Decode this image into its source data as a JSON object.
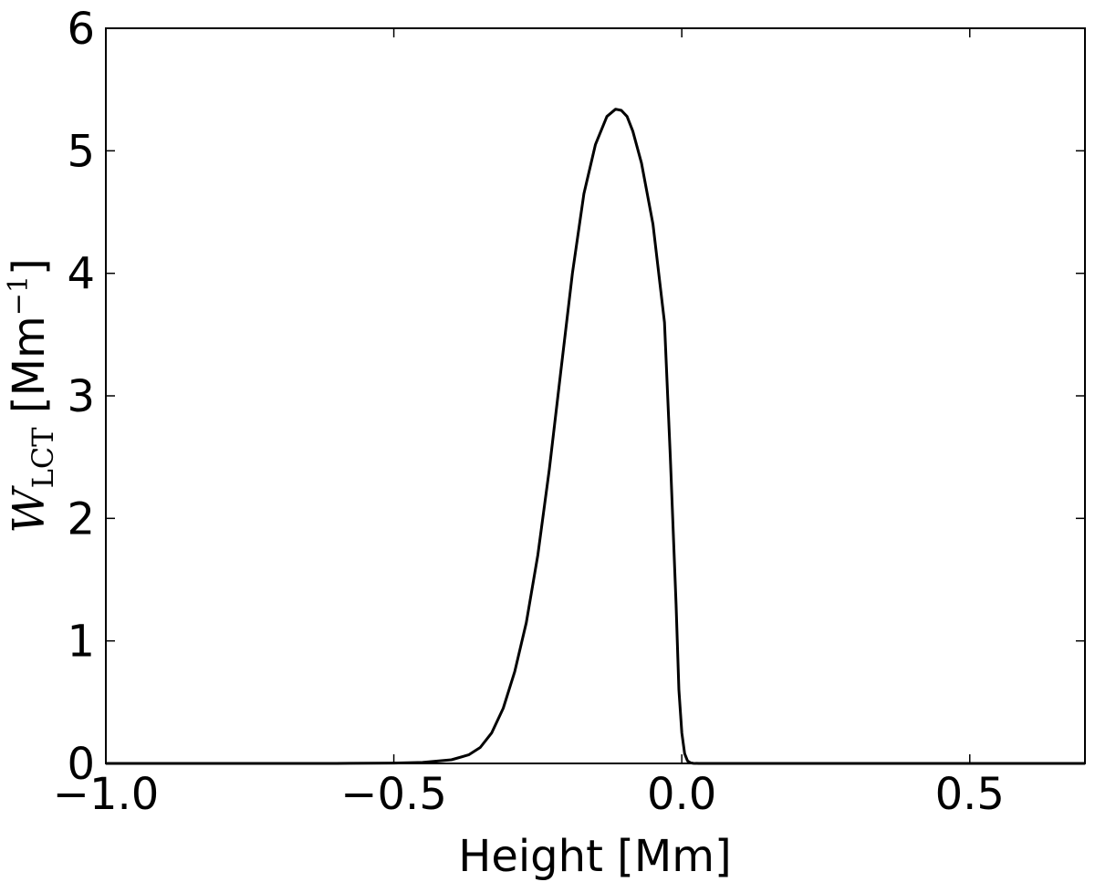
{
  "chart_data": {
    "type": "line",
    "title": "",
    "xlabel": "Height [Mm]",
    "ylabel": {
      "symbol": "W",
      "subscript": "LCT",
      "unit_prefix": " [Mm",
      "unit_exponent": "−1",
      "unit_suffix": "]"
    },
    "xlim": [
      -1.0,
      0.7
    ],
    "ylim": [
      0,
      6
    ],
    "x_ticks": [
      -1.0,
      -0.5,
      0.0,
      0.5
    ],
    "x_tick_labels": [
      "−1.0",
      "−0.5",
      "0.0",
      "0.5"
    ],
    "y_ticks": [
      0,
      1,
      2,
      3,
      4,
      5,
      6
    ],
    "y_tick_labels": [
      "0",
      "1",
      "2",
      "3",
      "4",
      "5",
      "6"
    ],
    "grid": false,
    "line_color": "#000000",
    "series": [
      {
        "x": [
          -1.0,
          -0.6,
          -0.5,
          -0.45,
          -0.4,
          -0.37,
          -0.35,
          -0.33,
          -0.31,
          -0.29,
          -0.27,
          -0.25,
          -0.23,
          -0.21,
          -0.19,
          -0.17,
          -0.15,
          -0.13,
          -0.115,
          -0.105,
          -0.095,
          -0.085,
          -0.07,
          -0.05,
          -0.03,
          -0.02,
          -0.01,
          -0.005,
          0.0,
          0.005,
          0.01,
          0.015,
          0.02,
          0.03,
          0.7
        ],
        "y": [
          0,
          0,
          0.003,
          0.008,
          0.03,
          0.07,
          0.13,
          0.25,
          0.45,
          0.75,
          1.15,
          1.7,
          2.4,
          3.2,
          4.0,
          4.65,
          5.05,
          5.28,
          5.34,
          5.33,
          5.28,
          5.16,
          4.9,
          4.4,
          3.6,
          2.5,
          1.3,
          0.6,
          0.25,
          0.08,
          0.02,
          0.005,
          0.001,
          0,
          0
        ]
      }
    ]
  }
}
